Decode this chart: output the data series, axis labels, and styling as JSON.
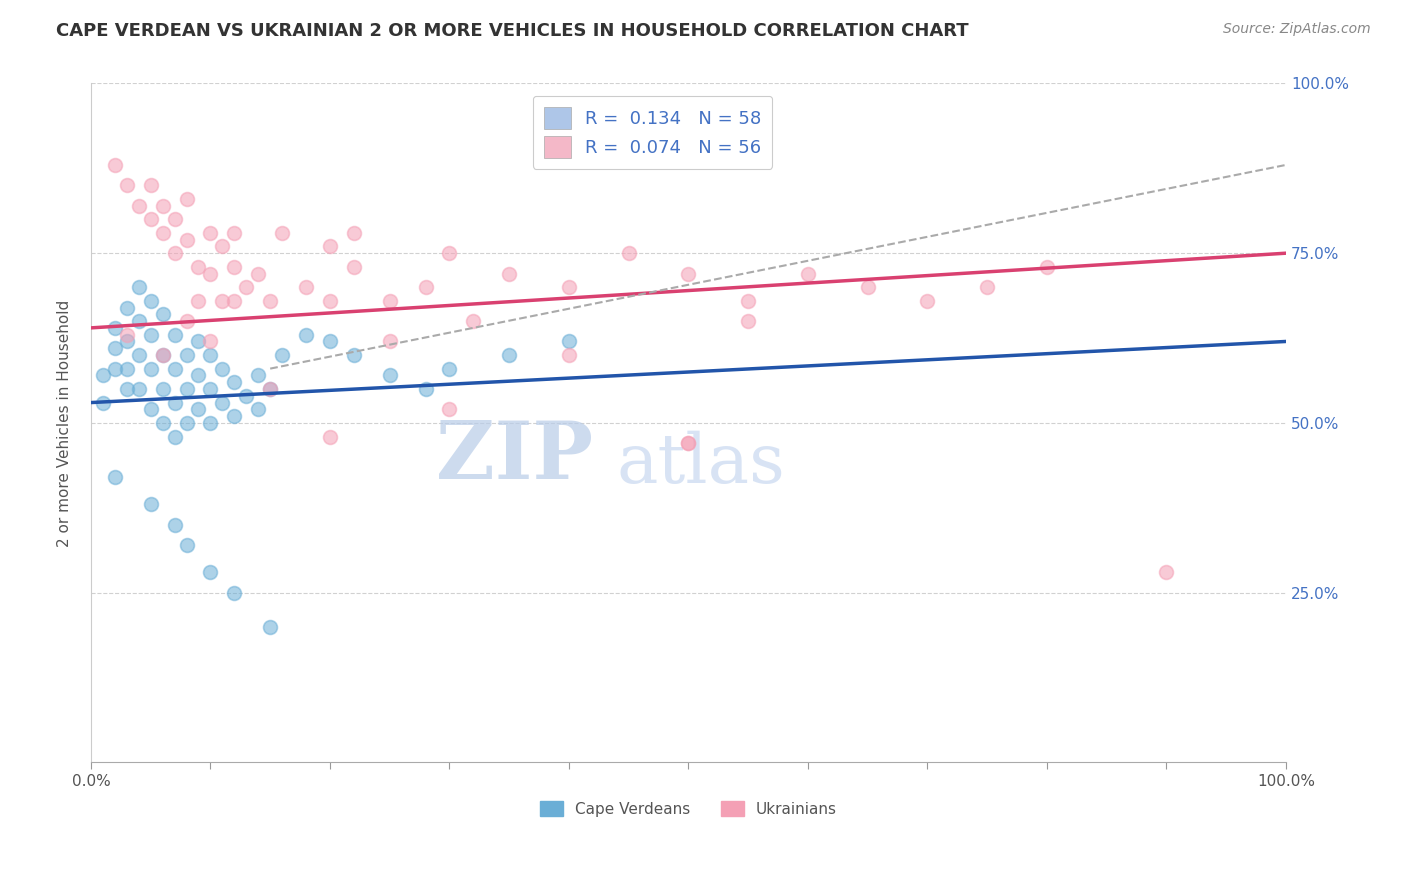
{
  "title": "CAPE VERDEAN VS UKRAINIAN 2 OR MORE VEHICLES IN HOUSEHOLD CORRELATION CHART",
  "source": "Source: ZipAtlas.com",
  "ylabel": "2 or more Vehicles in Household",
  "xlabel": "",
  "xlim": [
    0,
    100
  ],
  "ylim": [
    0,
    100
  ],
  "xticks": [
    0,
    10,
    20,
    30,
    40,
    50,
    60,
    70,
    80,
    90,
    100
  ],
  "xtick_labels": [
    "0.0%",
    "",
    "",
    "",
    "",
    "",
    "",
    "",
    "",
    "",
    "100.0%"
  ],
  "ytick_labels": [
    "25.0%",
    "50.0%",
    "75.0%",
    "100.0%"
  ],
  "yticks": [
    25,
    50,
    75,
    100
  ],
  "legend_entries": [
    {
      "label": "R =  0.134   N = 58",
      "color": "#aec6e8"
    },
    {
      "label": "R =  0.074   N = 56",
      "color": "#f4b8c8"
    }
  ],
  "blue_color": "#6aaed6",
  "pink_color": "#f4a0b5",
  "blue_line_color": "#2255aa",
  "pink_line_color": "#d94070",
  "dashed_line_color": "#aaaaaa",
  "legend_text_color": "#4472c4",
  "watermark_zip_color": "#b8cce8",
  "watermark_atlas_color": "#c8d8f0",
  "title_fontsize": 13,
  "source_fontsize": 10,
  "blue_scatter": [
    [
      1,
      53
    ],
    [
      1,
      57
    ],
    [
      2,
      58
    ],
    [
      2,
      61
    ],
    [
      2,
      64
    ],
    [
      3,
      62
    ],
    [
      3,
      67
    ],
    [
      3,
      58
    ],
    [
      3,
      55
    ],
    [
      4,
      70
    ],
    [
      4,
      65
    ],
    [
      4,
      60
    ],
    [
      4,
      55
    ],
    [
      5,
      68
    ],
    [
      5,
      63
    ],
    [
      5,
      58
    ],
    [
      5,
      52
    ],
    [
      6,
      66
    ],
    [
      6,
      60
    ],
    [
      6,
      55
    ],
    [
      6,
      50
    ],
    [
      7,
      63
    ],
    [
      7,
      58
    ],
    [
      7,
      53
    ],
    [
      7,
      48
    ],
    [
      8,
      60
    ],
    [
      8,
      55
    ],
    [
      8,
      50
    ],
    [
      9,
      62
    ],
    [
      9,
      57
    ],
    [
      9,
      52
    ],
    [
      10,
      60
    ],
    [
      10,
      55
    ],
    [
      10,
      50
    ],
    [
      11,
      58
    ],
    [
      11,
      53
    ],
    [
      12,
      56
    ],
    [
      12,
      51
    ],
    [
      13,
      54
    ],
    [
      14,
      57
    ],
    [
      14,
      52
    ],
    [
      15,
      55
    ],
    [
      16,
      60
    ],
    [
      18,
      63
    ],
    [
      20,
      62
    ],
    [
      22,
      60
    ],
    [
      25,
      57
    ],
    [
      28,
      55
    ],
    [
      30,
      58
    ],
    [
      35,
      60
    ],
    [
      40,
      62
    ],
    [
      2,
      42
    ],
    [
      5,
      38
    ],
    [
      7,
      35
    ],
    [
      8,
      32
    ],
    [
      10,
      28
    ],
    [
      12,
      25
    ],
    [
      15,
      20
    ]
  ],
  "pink_scatter": [
    [
      2,
      88
    ],
    [
      3,
      85
    ],
    [
      4,
      82
    ],
    [
      5,
      80
    ],
    [
      5,
      85
    ],
    [
      6,
      78
    ],
    [
      6,
      82
    ],
    [
      7,
      80
    ],
    [
      7,
      75
    ],
    [
      8,
      83
    ],
    [
      8,
      77
    ],
    [
      9,
      73
    ],
    [
      9,
      68
    ],
    [
      10,
      78
    ],
    [
      10,
      72
    ],
    [
      11,
      76
    ],
    [
      11,
      68
    ],
    [
      12,
      73
    ],
    [
      12,
      78
    ],
    [
      13,
      70
    ],
    [
      14,
      72
    ],
    [
      15,
      68
    ],
    [
      16,
      78
    ],
    [
      18,
      70
    ],
    [
      20,
      76
    ],
    [
      20,
      68
    ],
    [
      22,
      73
    ],
    [
      22,
      78
    ],
    [
      25,
      68
    ],
    [
      28,
      70
    ],
    [
      30,
      75
    ],
    [
      32,
      65
    ],
    [
      35,
      72
    ],
    [
      40,
      70
    ],
    [
      45,
      75
    ],
    [
      50,
      72
    ],
    [
      55,
      68
    ],
    [
      3,
      63
    ],
    [
      6,
      60
    ],
    [
      8,
      65
    ],
    [
      10,
      62
    ],
    [
      12,
      68
    ],
    [
      15,
      55
    ],
    [
      20,
      48
    ],
    [
      25,
      62
    ],
    [
      30,
      52
    ],
    [
      40,
      60
    ],
    [
      50,
      47
    ],
    [
      55,
      65
    ],
    [
      60,
      72
    ],
    [
      65,
      70
    ],
    [
      70,
      68
    ],
    [
      75,
      70
    ],
    [
      80,
      73
    ],
    [
      90,
      28
    ],
    [
      50,
      47
    ]
  ],
  "blue_regression": {
    "x_start": 0,
    "x_end": 100,
    "y_start": 53,
    "y_end": 62
  },
  "pink_regression": {
    "x_start": 0,
    "x_end": 100,
    "y_start": 64,
    "y_end": 75
  },
  "dashed_regression": {
    "x_start": 15,
    "x_end": 100,
    "y_start": 58,
    "y_end": 88
  }
}
